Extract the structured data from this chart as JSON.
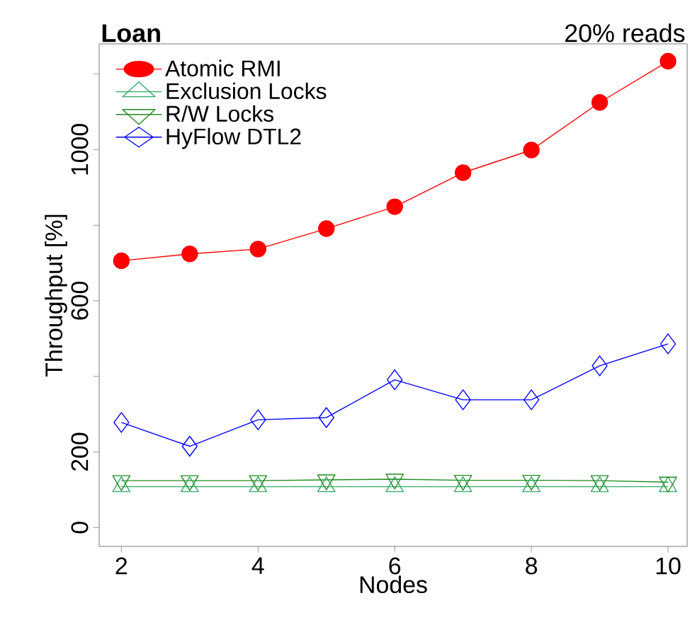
{
  "chart_data": {
    "type": "line",
    "title": "Loan",
    "subtitle": "20% reads",
    "xlabel": "Nodes",
    "ylabel": "Throughput [%]",
    "x": [
      2,
      3,
      4,
      5,
      6,
      7,
      8,
      9,
      10
    ],
    "xlim": [
      1.675,
      10.28
    ],
    "xticks": [
      2,
      4,
      6,
      8,
      10
    ],
    "ylim": [
      -50,
      1280
    ],
    "yticks": [
      0,
      200,
      {
        "value": 400,
        "label": null
      },
      600,
      {
        "value": 800,
        "label": null
      },
      1000,
      {
        "value": 1200,
        "label": null
      }
    ],
    "legend": "top left",
    "grid": false,
    "series": [
      {
        "name": "Atomic RMI",
        "color": "#ff0000",
        "marker": "circle",
        "values": [
          706,
          724,
          737,
          791,
          849,
          939,
          999,
          1125,
          1234
        ]
      },
      {
        "name": "Exclusion Locks",
        "color": "#33aa66",
        "marker": "triangle",
        "values": [
          108,
          108,
          108,
          108,
          108,
          108,
          108,
          108,
          108
        ]
      },
      {
        "name": "R/W Locks",
        "color": "#228b22",
        "marker": "triangle-down",
        "values": [
          124,
          124,
          124,
          126,
          128,
          125,
          125,
          124,
          120
        ]
      },
      {
        "name": "HyFlow DTL2",
        "color": "#0000ff",
        "marker": "diamond",
        "values": [
          278,
          215,
          285,
          291,
          391,
          338,
          338,
          428,
          486
        ]
      }
    ]
  }
}
